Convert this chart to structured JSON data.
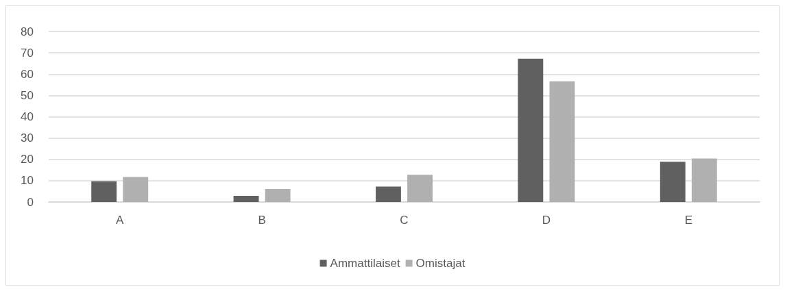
{
  "chart_data": {
    "type": "bar",
    "categories": [
      "A",
      "B",
      "C",
      "D",
      "E"
    ],
    "series": [
      {
        "name": "Ammattilaiset",
        "color": "#606060",
        "values": [
          9.7,
          2.9,
          7.2,
          67.2,
          18.9
        ]
      },
      {
        "name": "Omistajat",
        "color": "#b0b0b0",
        "values": [
          11.7,
          6.1,
          12.8,
          56.6,
          20.4
        ]
      }
    ],
    "ylim": [
      0,
      80
    ],
    "yticks": [
      0,
      10,
      20,
      30,
      40,
      50,
      60,
      70,
      80
    ],
    "grid": "y",
    "legend": "bottom"
  }
}
